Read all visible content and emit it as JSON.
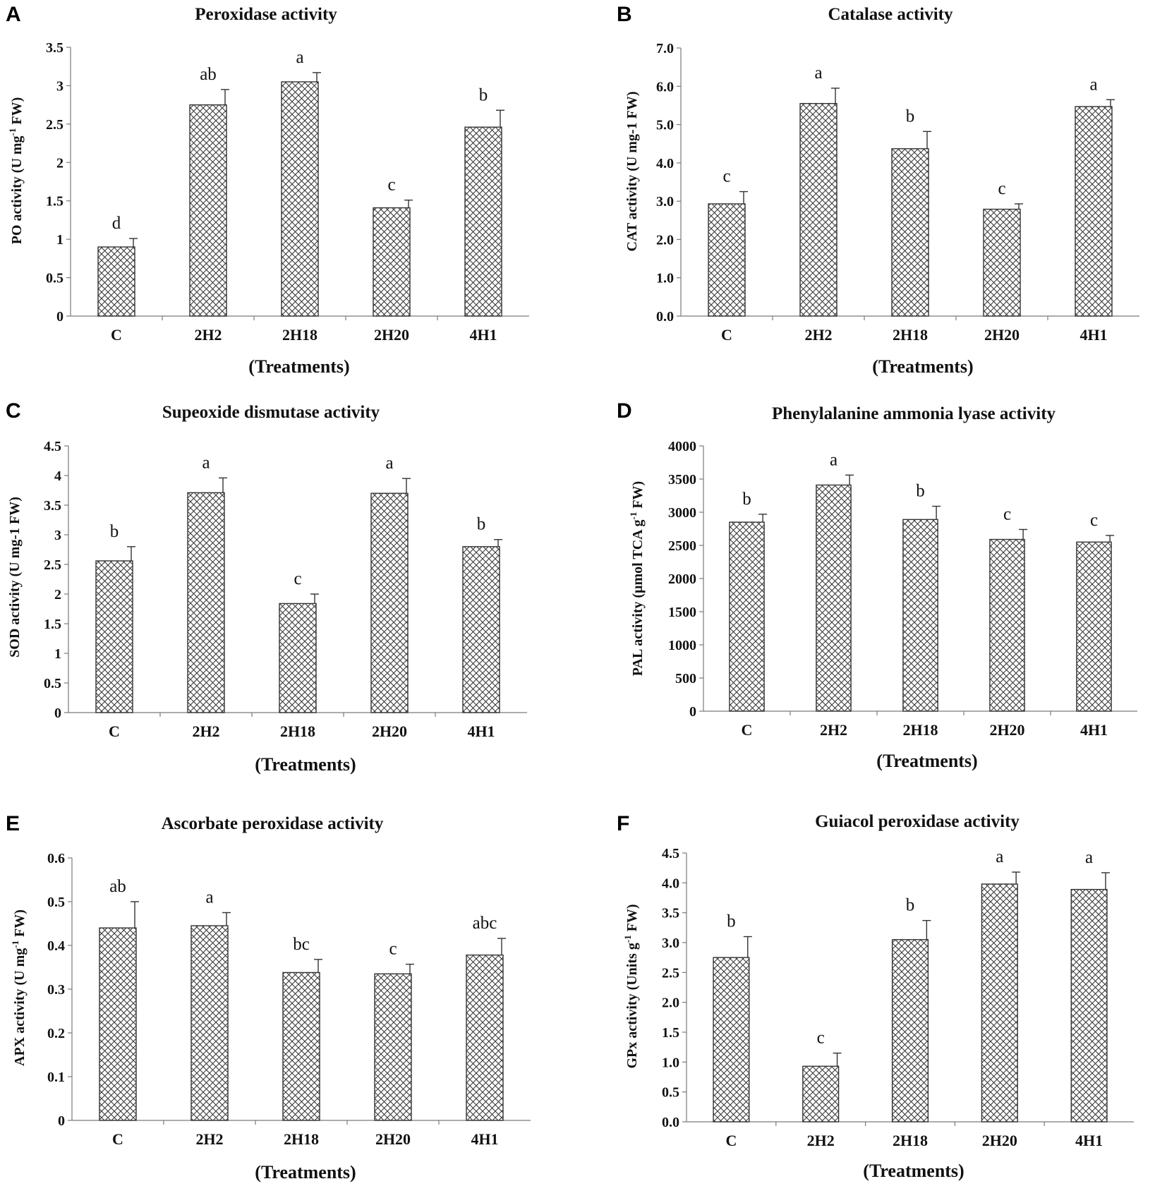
{
  "figure": {
    "x_axis_title": "(Treatments)",
    "hatch_color": "#3a3a3a"
  },
  "chart_data": [
    {
      "type": "bar",
      "panel": "A",
      "title": "Peroxidase activity",
      "ylabel": {
        "prefix": "PO activity (U mg",
        "sup": "-1",
        "suffix": " FW)"
      },
      "xlabel": "(Treatments)",
      "categories": [
        "C",
        "2H2",
        "2H18",
        "2H20",
        "4H1"
      ],
      "values": [
        0.9,
        2.75,
        3.05,
        1.41,
        2.46
      ],
      "errors": [
        0.11,
        0.2,
        0.12,
        0.1,
        0.22
      ],
      "significance": [
        "d",
        "ab",
        "a",
        "c",
        "b"
      ],
      "ylim": [
        0,
        3.5
      ],
      "yticks": [
        0,
        0.5,
        1,
        1.5,
        2,
        2.5,
        3,
        3.5
      ],
      "ytick_labels": [
        "0",
        "0.5",
        "1",
        "1.5",
        "2",
        "2.5",
        "3",
        "3.5"
      ]
    },
    {
      "type": "bar",
      "panel": "B",
      "title": "Catalase activity",
      "ylabel": {
        "prefix": "CAT activity (U mg-1 FW)",
        "sup": "",
        "suffix": ""
      },
      "xlabel": "(Treatments)",
      "categories": [
        "C",
        "2H2",
        "2H18",
        "2H20",
        "4H1"
      ],
      "values": [
        2.93,
        5.55,
        4.37,
        2.79,
        5.47
      ],
      "errors": [
        0.32,
        0.4,
        0.45,
        0.14,
        0.18
      ],
      "significance": [
        "c",
        "a",
        "b",
        "c",
        "a"
      ],
      "ylim": [
        0,
        7.0
      ],
      "yticks": [
        0,
        1,
        2,
        3,
        4,
        5,
        6,
        7
      ],
      "ytick_labels": [
        "0.0",
        "1.0",
        "2.0",
        "3.0",
        "4.0",
        "5.0",
        "6.0",
        "7.0"
      ]
    },
    {
      "type": "bar",
      "panel": "C",
      "title": "Supeoxide dismutase activity",
      "ylabel": {
        "prefix": "SOD activity (U mg-1 FW)",
        "sup": "",
        "suffix": ""
      },
      "xlabel": "(Treatments)",
      "categories": [
        "C",
        "2H2",
        "2H18",
        "2H20",
        "4H1"
      ],
      "values": [
        2.56,
        3.71,
        1.84,
        3.7,
        2.8
      ],
      "errors": [
        0.24,
        0.25,
        0.16,
        0.25,
        0.12
      ],
      "significance": [
        "b",
        "a",
        "c",
        "a",
        "b"
      ],
      "ylim": [
        0,
        4.5
      ],
      "yticks": [
        0,
        0.5,
        1,
        1.5,
        2,
        2.5,
        3,
        3.5,
        4,
        4.5
      ],
      "ytick_labels": [
        "0",
        "0.5",
        "1",
        "1.5",
        "2",
        "2.5",
        "3",
        "3.5",
        "4",
        "4.5"
      ]
    },
    {
      "type": "bar",
      "panel": "D",
      "title": "Phenylalanine ammonia lyase activity",
      "ylabel": {
        "prefix": "PAL activity (μmol TCA g",
        "sup": "-1",
        "suffix": " FW)"
      },
      "xlabel": "(Treatments)",
      "categories": [
        "C",
        "2H2",
        "2H18",
        "2H20",
        "4H1"
      ],
      "values": [
        2850,
        3410,
        2890,
        2590,
        2550
      ],
      "errors": [
        120,
        150,
        200,
        150,
        100
      ],
      "significance": [
        "b",
        "a",
        "b",
        "c",
        "c"
      ],
      "ylim": [
        0,
        4000
      ],
      "yticks": [
        0,
        500,
        1000,
        1500,
        2000,
        2500,
        3000,
        3500,
        4000
      ],
      "ytick_labels": [
        "0",
        "500",
        "1000",
        "1500",
        "2000",
        "2500",
        "3000",
        "3500",
        "4000"
      ]
    },
    {
      "type": "bar",
      "panel": "E",
      "title": "Ascorbate peroxidase activity",
      "ylabel": {
        "prefix": "APX activity (U mg",
        "sup": "-1",
        "suffix": " FW)"
      },
      "xlabel": "(Treatments)",
      "categories": [
        "C",
        "2H2",
        "2H18",
        "2H20",
        "4H1"
      ],
      "values": [
        0.44,
        0.445,
        0.338,
        0.335,
        0.378
      ],
      "errors": [
        0.06,
        0.03,
        0.03,
        0.022,
        0.038
      ],
      "significance": [
        "ab",
        "a",
        "bc",
        "c",
        "abc"
      ],
      "ylim": [
        0,
        0.6
      ],
      "yticks": [
        0,
        0.1,
        0.2,
        0.3,
        0.4,
        0.5,
        0.6
      ],
      "ytick_labels": [
        "0",
        "0.1",
        "0.2",
        "0.3",
        "0.4",
        "0.5",
        "0.6"
      ]
    },
    {
      "type": "bar",
      "panel": "F",
      "title": "Guiacol peroxidase activity",
      "ylabel": {
        "prefix": "GPx activity (Units g",
        "sup": "-1",
        "suffix": " FW)"
      },
      "xlabel": "(Treatments)",
      "categories": [
        "C",
        "2H2",
        "2H18",
        "2H20",
        "4H1"
      ],
      "values": [
        2.75,
        0.93,
        3.05,
        3.98,
        3.89
      ],
      "errors": [
        0.35,
        0.22,
        0.32,
        0.2,
        0.28
      ],
      "significance": [
        "b",
        "c",
        "b",
        "a",
        "a"
      ],
      "ylim": [
        0,
        4.5
      ],
      "yticks": [
        0,
        0.5,
        1,
        1.5,
        2,
        2.5,
        3,
        3.5,
        4,
        4.5
      ],
      "ytick_labels": [
        "0.0",
        "0.5",
        "1.0",
        "1.5",
        "2.0",
        "2.5",
        "3.0",
        "3.5",
        "4.0",
        "4.5"
      ]
    }
  ]
}
